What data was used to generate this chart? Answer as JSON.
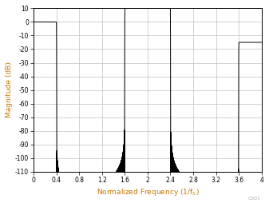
{
  "title": "",
  "xlabel_main": "Normalized Frequency (1/f",
  "xlabel_sub": "S",
  "xlabel_end": ")",
  "ylabel": "Magnitude (dB)",
  "xlim": [
    0,
    4
  ],
  "ylim": [
    -110,
    10
  ],
  "xticks": [
    0,
    0.4,
    0.8,
    1.2,
    1.6,
    2.0,
    2.4,
    2.8,
    3.2,
    3.6,
    4.0
  ],
  "xtick_labels": [
    "0",
    "0.4",
    "0.8",
    "1.2",
    "1.6",
    "2",
    "2.4",
    "2.8",
    "3.2",
    "3.6",
    "4"
  ],
  "yticks": [
    10,
    0,
    -10,
    -20,
    -30,
    -40,
    -50,
    -60,
    -70,
    -80,
    -90,
    -100,
    -110
  ],
  "ytick_labels": [
    "10",
    "0",
    "-10",
    "-20",
    "-30",
    "-40",
    "-50",
    "-60",
    "-70",
    "-80",
    "-90",
    "-100",
    "-110"
  ],
  "line_color": "#000000",
  "grid_color": "#c0c0c0",
  "axis_label_color": "#c87800",
  "background_color": "#ffffff",
  "figsize": [
    3.37,
    2.54
  ],
  "dpi": 100,
  "annotation": "C001",
  "annotation_color": "#a0a0a0"
}
